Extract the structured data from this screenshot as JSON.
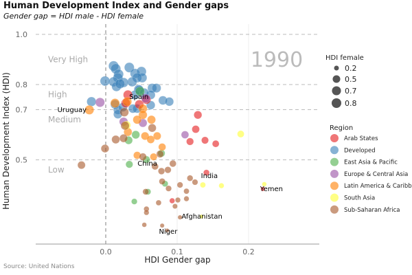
{
  "title": "Human Development Index and Gender gaps",
  "subtitle": "Gender gap =  HDI male - HDI female",
  "source": "Source: United Nations",
  "chart_data": {
    "type": "scatter",
    "year_label": "1990",
    "xlabel": "HDI Gender gap",
    "ylabel": "Human Development Index (HDI)",
    "xlim": [
      -0.1,
      0.3
    ],
    "ylim": [
      0.164,
      1.041
    ],
    "x_ticks": [
      {
        "v": 0,
        "label": "0.0"
      },
      {
        "v": 0.1,
        "label": "0.1"
      },
      {
        "v": 0.2,
        "label": "0.2"
      }
    ],
    "y_ticks": [
      {
        "v": 1.0,
        "label": "1.0"
      },
      {
        "v": 0.8,
        "label": "0.8"
      },
      {
        "v": 0.7,
        "label": "0.7"
      },
      {
        "v": 0.5,
        "label": "0.5"
      }
    ],
    "bands": [
      {
        "label": "Very High",
        "y": 0.9
      },
      {
        "label": "High",
        "y": 0.76
      },
      {
        "label": "Medium",
        "y": 0.66
      },
      {
        "label": "Low",
        "y": 0.46
      }
    ],
    "size_legend": {
      "title": "HDI female",
      "values": [
        {
          "v": 0.2,
          "label": "0.2"
        },
        {
          "v": 0.5,
          "label": "0.5"
        },
        {
          "v": 0.7,
          "label": "0.7"
        },
        {
          "v": 0.8,
          "label": "0.8"
        }
      ]
    },
    "color_legend_title": "Region",
    "regions": [
      {
        "name": "Arab States",
        "color": "#e41a1c"
      },
      {
        "name": "Developed",
        "color": "#377eb8"
      },
      {
        "name": "East Asia & Pacific",
        "color": "#4daf4a"
      },
      {
        "name": "Europe & Central Asia",
        "color": "#984ea3"
      },
      {
        "name": "Latin America & Caribbean",
        "color": "#ff7f00"
      },
      {
        "name": "South Asia",
        "color": "#ffff33"
      },
      {
        "name": "Sub-Saharan Africa",
        "color": "#a65628"
      }
    ],
    "size_encoding": "HDI female = HDI - gap",
    "points": [
      [
        0.011,
        0.874,
        1
      ],
      [
        0.014,
        0.863,
        1
      ],
      [
        0.018,
        0.841,
        1
      ],
      [
        0.017,
        0.827,
        1
      ],
      [
        0.033,
        0.868,
        1
      ],
      [
        0.041,
        0.844,
        1
      ],
      [
        0.05,
        0.852,
        1
      ],
      [
        0.051,
        0.827,
        1
      ],
      [
        0.044,
        0.827,
        1
      ],
      [
        0.037,
        0.811,
        1
      ],
      [
        0.025,
        0.808,
        1
      ],
      [
        0.011,
        0.811,
        1
      ],
      [
        -0.001,
        0.814,
        1
      ],
      [
        0.015,
        0.792,
        1
      ],
      [
        0.02,
        0.803,
        1
      ],
      [
        0.046,
        0.781,
        1
      ],
      [
        0.065,
        0.786,
        1
      ],
      [
        0.071,
        0.786,
        1
      ],
      [
        0.063,
        0.759,
        1
      ],
      [
        0.08,
        0.737,
        1
      ],
      [
        0.089,
        0.732,
        1
      ],
      [
        -0.02,
        0.732,
        1
      ],
      [
        0.044,
        0.704,
        1
      ],
      [
        0.063,
        0.718,
        1
      ],
      [
        0.013,
        0.721,
        1
      ],
      [
        0.017,
        0.699,
        1
      ],
      [
        0.017,
        0.682,
        1
      ],
      [
        0.024,
        0.71,
        1
      ],
      [
        0.038,
        0.704,
        1
      ],
      [
        0.041,
        0.759,
        1
      ],
      [
        0.047,
        0.778,
        1
      ],
      [
        0.054,
        0.767,
        1
      ],
      [
        0.031,
        0.759,
        0,
        "Spain"
      ],
      [
        0.047,
        0.721,
        0
      ],
      [
        0.057,
        0.74,
        0
      ],
      [
        0.028,
        0.726,
        0
      ],
      [
        0.129,
        0.679,
        0
      ],
      [
        0.126,
        0.622,
        0
      ],
      [
        0.118,
        0.573,
        0
      ],
      [
        0.139,
        0.578,
        0
      ],
      [
        0.154,
        0.564,
        0
      ],
      [
        0.093,
        0.337,
        0
      ],
      [
        0.141,
        0.449,
        0,
        "India"
      ],
      [
        0.22,
        0.384,
        0,
        "Yemen"
      ],
      [
        0.048,
        0.773,
        2
      ],
      [
        0.042,
        0.6,
        2
      ],
      [
        0.032,
        0.578,
        2
      ],
      [
        0.078,
        0.526,
        2
      ],
      [
        0.033,
        0.482,
        2
      ],
      [
        0.083,
        0.405,
        2
      ],
      [
        0.059,
        0.373,
        2
      ],
      [
        0.04,
        0.334,
        2
      ],
      [
        0.057,
        0.501,
        2,
        "China"
      ],
      [
        -0.008,
        0.729,
        3
      ],
      [
        0.056,
        0.745,
        3
      ],
      [
        0.025,
        0.652,
        3
      ],
      [
        0.052,
        0.647,
        3
      ],
      [
        0.111,
        0.6,
        3
      ],
      [
        -0.023,
        0.699,
        4,
        "Uruguay"
      ],
      [
        0.013,
        0.726,
        4
      ],
      [
        0.03,
        0.732,
        4
      ],
      [
        0.052,
        0.704,
        4
      ],
      [
        0.052,
        0.679,
        4
      ],
      [
        0.044,
        0.66,
        4
      ],
      [
        0.064,
        0.66,
        4
      ],
      [
        0.031,
        0.611,
        4
      ],
      [
        0.055,
        0.595,
        4
      ],
      [
        0.063,
        0.581,
        4
      ],
      [
        0.072,
        0.595,
        4
      ],
      [
        0.079,
        0.551,
        4
      ],
      [
        0.067,
        0.512,
        4
      ],
      [
        0.044,
        0.518,
        4
      ],
      [
        0.029,
        0.638,
        5
      ],
      [
        0.189,
        0.603,
        5
      ],
      [
        0.136,
        0.4,
        5
      ],
      [
        0.162,
        0.397,
        5
      ],
      [
        0.222,
        0.403,
        5
      ],
      [
        0.134,
        0.274,
        5,
        "Afghanistan"
      ],
      [
        0.026,
        0.69,
        6
      ],
      [
        0.027,
        0.636,
        6
      ],
      [
        0.065,
        0.627,
        6
      ],
      [
        0.014,
        0.581,
        6
      ],
      [
        0.025,
        0.586,
        6
      ],
      [
        -0.001,
        0.545,
        6
      ],
      [
        0.052,
        0.512,
        6
      ],
      [
        0.076,
        0.523,
        6
      ],
      [
        -0.034,
        0.479,
        6
      ],
      [
        0.069,
        0.474,
        6
      ],
      [
        0.094,
        0.485,
        6
      ],
      [
        0.078,
        0.455,
        6
      ],
      [
        0.087,
        0.46,
        6
      ],
      [
        0.079,
        0.414,
        6
      ],
      [
        0.088,
        0.386,
        6
      ],
      [
        0.104,
        0.4,
        6
      ],
      [
        0.118,
        0.427,
        6
      ],
      [
        0.125,
        0.411,
        6
      ],
      [
        0.113,
        0.375,
        6
      ],
      [
        0.113,
        0.345,
        6
      ],
      [
        0.101,
        0.34,
        6
      ],
      [
        0.097,
        0.315,
        6
      ],
      [
        0.074,
        0.329,
        6
      ],
      [
        0.056,
        0.373,
        6
      ],
      [
        0.057,
        0.304,
        6
      ],
      [
        0.057,
        0.29,
        6
      ],
      [
        0.054,
        0.241,
        6
      ],
      [
        0.079,
        0.238,
        6
      ],
      [
        0.086,
        0.219,
        6,
        "Niger"
      ],
      [
        0.104,
        0.271,
        6
      ]
    ]
  }
}
